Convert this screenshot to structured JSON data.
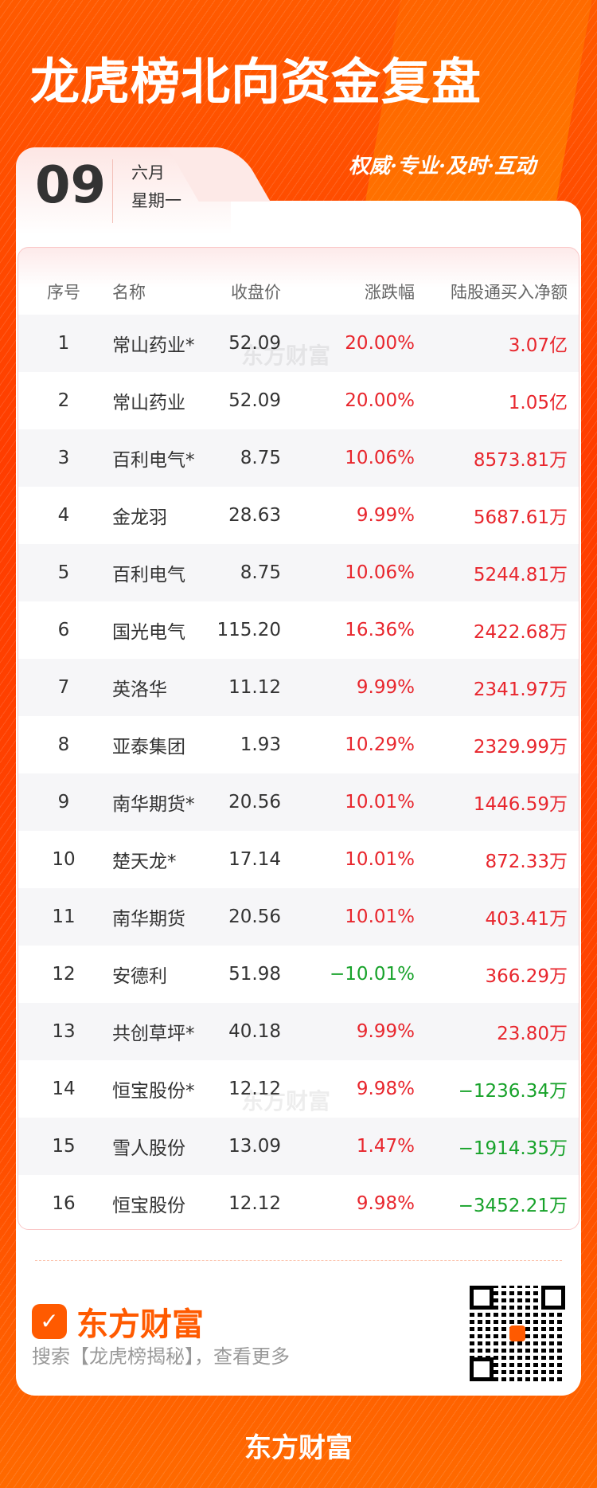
{
  "header": {
    "title": "龙虎榜北向资金复盘",
    "slogan": "权威·专业·及时·互动"
  },
  "date": {
    "day": "09",
    "month": "六月",
    "weekday": "星期一"
  },
  "table": {
    "columns": [
      "序号",
      "名称",
      "收盘价",
      "涨跌幅",
      "陆股通买入净额"
    ],
    "rows": [
      [
        "1",
        "常山药业*",
        "52.09",
        "20.00%",
        "3.07亿"
      ],
      [
        "2",
        "常山药业",
        "52.09",
        "20.00%",
        "1.05亿"
      ],
      [
        "3",
        "百利电气*",
        "8.75",
        "10.06%",
        "8573.81万"
      ],
      [
        "4",
        "金龙羽",
        "28.63",
        "9.99%",
        "5687.61万"
      ],
      [
        "5",
        "百利电气",
        "8.75",
        "10.06%",
        "5244.81万"
      ],
      [
        "6",
        "国光电气",
        "115.20",
        "16.36%",
        "2422.68万"
      ],
      [
        "7",
        "英洛华",
        "11.12",
        "9.99%",
        "2341.97万"
      ],
      [
        "8",
        "亚泰集团",
        "1.93",
        "10.29%",
        "2329.99万"
      ],
      [
        "9",
        "南华期货*",
        "20.56",
        "10.01%",
        "1446.59万"
      ],
      [
        "10",
        "楚天龙*",
        "17.14",
        "10.01%",
        "872.33万"
      ],
      [
        "11",
        "南华期货",
        "20.56",
        "10.01%",
        "403.41万"
      ],
      [
        "12",
        "安德利",
        "51.98",
        "−10.01%",
        "366.29万"
      ],
      [
        "13",
        "共创草坪*",
        "40.18",
        "9.99%",
        "23.80万"
      ],
      [
        "14",
        "恒宝股份*",
        "12.12",
        "9.98%",
        "−1236.34万"
      ],
      [
        "15",
        "雪人股份",
        "13.09",
        "1.47%",
        "−1914.35万"
      ],
      [
        "16",
        "恒宝股份",
        "12.12",
        "9.98%",
        "−3452.21万"
      ]
    ],
    "watermark": "东方财富"
  },
  "footer": {
    "brand": "东方财富",
    "search_hint": "搜索【龙虎榜揭秘】，查看更多",
    "bottom_brand": "东方财富"
  },
  "colors": {
    "up": "#e8262d",
    "down": "#17a22a",
    "brand": "#ff5a00"
  }
}
